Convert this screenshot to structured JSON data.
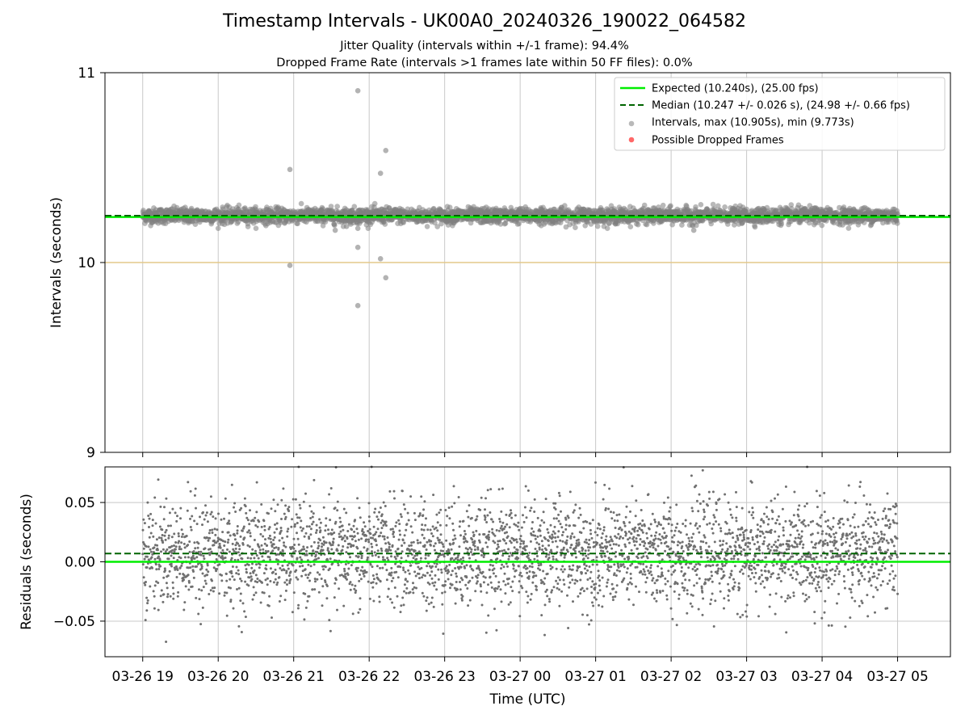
{
  "figure": {
    "title": "Timestamp Intervals - UK00A0_20240326_190022_064582",
    "subtitle_1": "Jitter Quality (intervals within +/-1 frame): 94.4%",
    "subtitle_2": "Dropped Frame Rate (intervals >1 frames late within 50 FF files): 0.0%"
  },
  "colors": {
    "expected": "#00ee00",
    "median": "#006400",
    "intervals": "#808080",
    "dropped": "#ff4d4d",
    "reference_line": "#e3c88a",
    "grid": "#c8c8c8"
  },
  "chart_data": [
    {
      "type": "scatter",
      "panel": "intervals",
      "xlabel": "",
      "ylabel": "Intervals (seconds)",
      "ylim": [
        9,
        11
      ],
      "yticks": [
        "9",
        "10",
        "11"
      ],
      "xlim_hours_after_0326_1900": [
        -0.5,
        10.7
      ],
      "reference_line_y": 10.0,
      "grid": true,
      "legend_position": "top-right",
      "legend": [
        "Expected (10.240s), (25.00 fps)",
        "Median (10.247 +/- 0.026 s), (24.98 +/- 0.66 fps)",
        "Intervals, max (10.905s), min (9.773s)",
        "Possible Dropped Frames"
      ],
      "expected_y": 10.24,
      "median_y": 10.247,
      "median_std": 0.026,
      "interval_max": 10.905,
      "interval_min": 9.773,
      "interval_count": 3500,
      "data_time_range_hours": [
        0.0,
        10.0
      ],
      "outlier_points": [
        {
          "t_hours": 1.95,
          "y": 10.49
        },
        {
          "t_hours": 1.95,
          "y": 9.985
        },
        {
          "t_hours": 2.85,
          "y": 10.905
        },
        {
          "t_hours": 2.85,
          "y": 10.18
        },
        {
          "t_hours": 2.85,
          "y": 10.08
        },
        {
          "t_hours": 2.85,
          "y": 9.773
        },
        {
          "t_hours": 3.15,
          "y": 10.47
        },
        {
          "t_hours": 3.15,
          "y": 10.02
        },
        {
          "t_hours": 3.22,
          "y": 10.59
        },
        {
          "t_hours": 3.22,
          "y": 9.92
        },
        {
          "t_hours": 2.55,
          "y": 10.17
        },
        {
          "t_hours": 2.7,
          "y": 10.19
        },
        {
          "t_hours": 7.3,
          "y": 10.17
        }
      ],
      "dropped_frames": []
    },
    {
      "type": "scatter",
      "panel": "residuals",
      "xlabel": "Time (UTC)",
      "ylabel": "Residuals (seconds)",
      "ylim": [
        -0.08,
        0.08
      ],
      "yticks": [
        "−0.05",
        "0.00",
        "0.05"
      ],
      "ytick_values": [
        -0.05,
        0.0,
        0.05
      ],
      "xticks": [
        "03-26 19",
        "03-26 20",
        "03-26 21",
        "03-26 22",
        "03-26 23",
        "03-27 00",
        "03-27 01",
        "03-27 02",
        "03-27 03",
        "03-27 04",
        "03-27 05"
      ],
      "xtick_hours": [
        0,
        1,
        2,
        3,
        4,
        5,
        6,
        7,
        8,
        9,
        10
      ],
      "expected_y": 0.0,
      "median_y": 0.007,
      "residual_max": 0.08,
      "residual_min": -0.07,
      "grid": true
    }
  ]
}
